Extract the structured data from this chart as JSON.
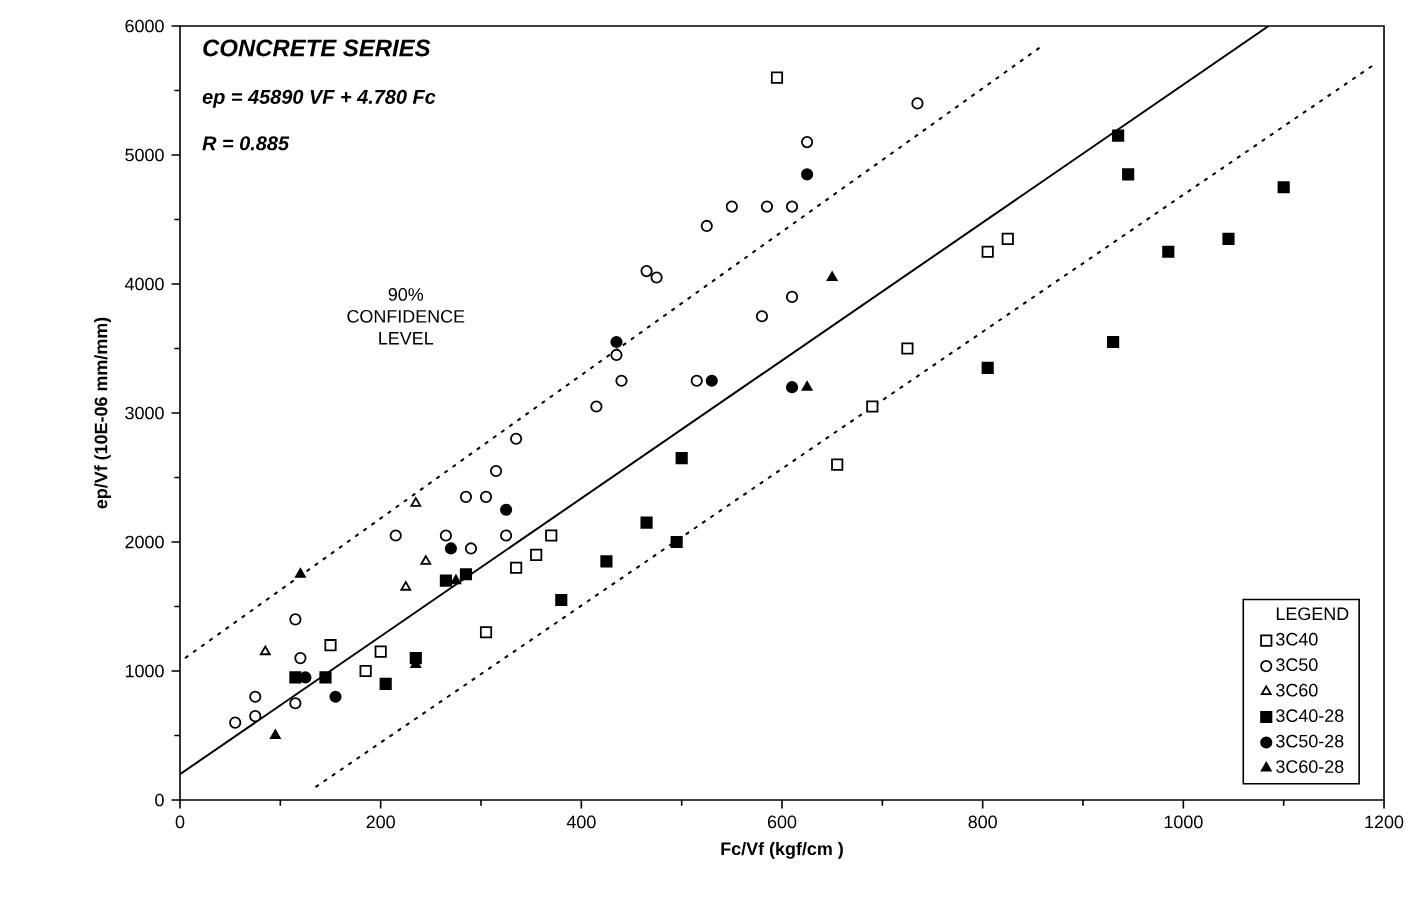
{
  "chart_data": {
    "type": "scatter",
    "title": "CONCRETE SERIES",
    "xlabel": "Fc/Vf     (kgf/cm )",
    "ylabel": "ep/Vf (10E-06 mm/mm)",
    "legend_title": "LEGEND",
    "annotations": [
      "ep = 45890 VF + 4.780 Fc",
      "R = 0.885",
      "90% CONFIDENCE LEVEL"
    ],
    "xlim": [
      0,
      1200
    ],
    "ylim": [
      0,
      6000
    ],
    "xticks": [
      0,
      200,
      400,
      600,
      800,
      1000,
      1200
    ],
    "yticks": [
      0,
      1000,
      2000,
      3000,
      4000,
      5000,
      6000
    ],
    "legend": "bottom right",
    "grid": false,
    "series": [
      {
        "name": "3C40",
        "color": "#ffffff",
        "marker": "square",
        "x": [
          150,
          185,
          200,
          305,
          335,
          355,
          370,
          595,
          805,
          825,
          725,
          690,
          655
        ],
        "values": [
          1200,
          1000,
          1150,
          1300,
          1800,
          1900,
          2050,
          5600,
          4250,
          4350,
          3500,
          3050,
          2600
        ]
      },
      {
        "name": "3C50",
        "color": "#ffffff",
        "marker": "circle",
        "x": [
          55,
          75,
          75,
          115,
          115,
          120,
          215,
          265,
          285,
          305,
          290,
          325,
          315,
          335,
          415,
          435,
          440,
          465,
          475,
          515,
          525,
          550,
          580,
          585,
          610,
          610,
          625,
          735
        ],
        "values": [
          600,
          650,
          800,
          750,
          1400,
          1100,
          2050,
          2050,
          2350,
          2350,
          1950,
          2050,
          2550,
          2800,
          3050,
          3450,
          3250,
          4100,
          4050,
          3250,
          4450,
          4600,
          3750,
          4600,
          3900,
          4600,
          5100,
          5400
        ]
      },
      {
        "name": "3C60",
        "color": "#ffffff",
        "marker": "triangle",
        "x": [
          85,
          225,
          235,
          245
        ],
        "values": [
          1150,
          1650,
          2300,
          1850
        ]
      },
      {
        "name": "3C40-28",
        "color": "#000000",
        "marker": "square",
        "x": [
          115,
          145,
          205,
          235,
          265,
          285,
          380,
          425,
          465,
          495,
          500,
          805,
          935,
          945,
          985,
          1045,
          1100,
          930
        ],
        "values": [
          950,
          950,
          900,
          1100,
          1700,
          1750,
          1550,
          1850,
          2150,
          2000,
          2650,
          3350,
          5150,
          4850,
          4250,
          4350,
          4750,
          3550
        ]
      },
      {
        "name": "3C50-28",
        "color": "#000000",
        "marker": "circle",
        "x": [
          125,
          155,
          270,
          325,
          435,
          530,
          610,
          625
        ],
        "values": [
          950,
          800,
          1950,
          2250,
          3550,
          3250,
          3200,
          4850
        ]
      },
      {
        "name": "3C60-28",
        "color": "#000000",
        "marker": "triangle",
        "x": [
          95,
          120,
          235,
          275,
          625,
          650
        ],
        "values": [
          500,
          1750,
          1050,
          1700,
          3200,
          4050
        ]
      },
      {
        "type": "line",
        "color": "#000000",
        "line_style": "solid",
        "x": [
          0,
          1085
        ],
        "values": [
          200,
          6000
        ]
      },
      {
        "type": "line",
        "color": "#000000",
        "line_style": "dotted",
        "x": [
          5,
          860
        ],
        "values": [
          1100,
          5850
        ]
      },
      {
        "type": "line",
        "color": "#000000",
        "line_style": "dotted",
        "x": [
          135,
          1190
        ],
        "values": [
          100,
          5700
        ]
      }
    ]
  }
}
